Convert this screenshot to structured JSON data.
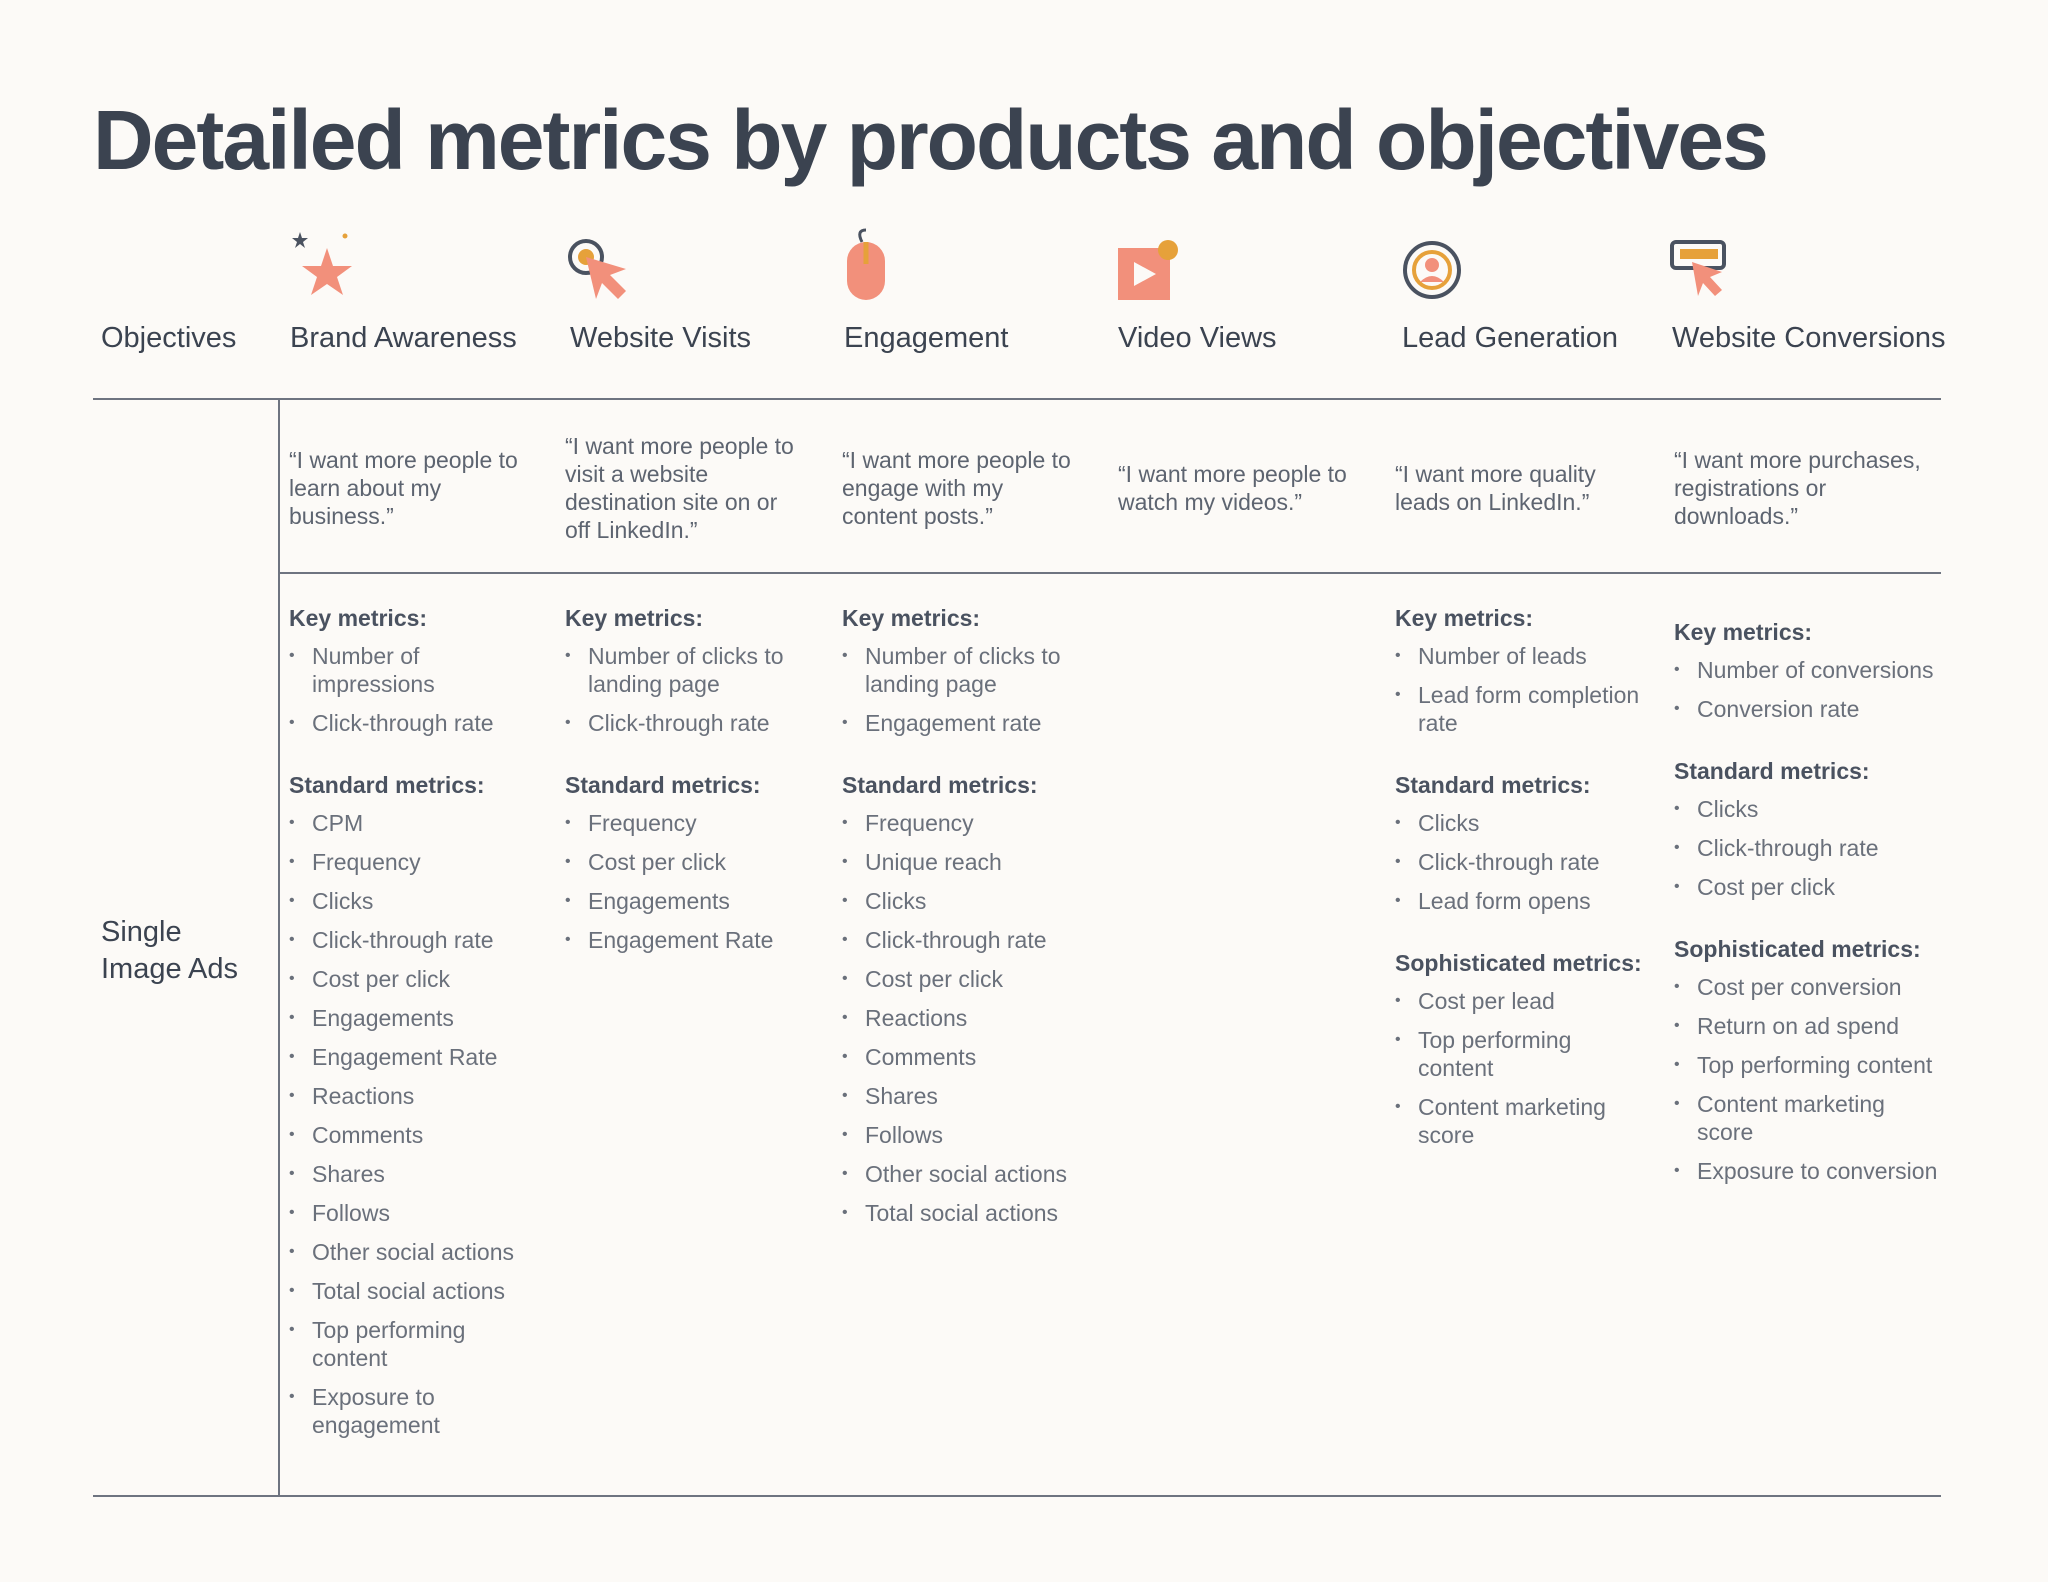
{
  "title": "Detailed metrics by products and objectives",
  "objectives_label": "Objectives",
  "product_label": "Single\nImage Ads",
  "colors": {
    "accent": "#f2907b",
    "accent_dark": "#e26e55",
    "gold": "#e6a13a",
    "text": "#3b4350",
    "rule": "#6e7480"
  },
  "columns": [
    {
      "icon": "star-sparkle-icon",
      "heading": "Brand Awareness",
      "quote": "“I want more people to learn about my business.”",
      "key_title": "Key metrics:",
      "key_metrics": [
        "Number of impressions",
        "Click-through rate"
      ],
      "standard_title": "Standard metrics:",
      "standard_metrics": [
        "CPM",
        "Frequency",
        "Clicks",
        "Click-through rate",
        "Cost per click",
        "Engagements",
        "Engagement Rate",
        "Reactions",
        "Comments",
        "Shares",
        "Follows",
        "Other social actions",
        "Total social actions",
        "Top performing content",
        "Exposure to engagement"
      ],
      "sophisticated_title": "",
      "sophisticated_metrics": []
    },
    {
      "icon": "cursor-click-icon",
      "heading": "Website Visits",
      "quote": "“I want more people to visit a website destination site on or off LinkedIn.”",
      "key_title": "Key metrics:",
      "key_metrics": [
        "Number of clicks to landing page",
        "Click-through rate"
      ],
      "standard_title": "Standard metrics:",
      "standard_metrics": [
        "Frequency",
        "Cost per click",
        "Engagements",
        "Engagement Rate"
      ],
      "sophisticated_title": "",
      "sophisticated_metrics": []
    },
    {
      "icon": "mouse-icon",
      "heading": "Engagement",
      "quote": "“I want more people to engage with my content posts.”",
      "key_title": "Key metrics:",
      "key_metrics": [
        "Number of clicks to landing page",
        "Engagement rate"
      ],
      "standard_title": "Standard metrics:",
      "standard_metrics": [
        "Frequency",
        "Unique reach",
        "Clicks",
        "Click-through rate",
        "Cost per click",
        "Reactions",
        "Comments",
        "Shares",
        "Follows",
        "Other social actions",
        "Total social actions"
      ],
      "sophisticated_title": "",
      "sophisticated_metrics": []
    },
    {
      "icon": "video-play-icon",
      "heading": "Video Views",
      "quote": "“I want more people to watch my videos.”",
      "key_title": "",
      "key_metrics": [],
      "standard_title": "",
      "standard_metrics": [],
      "sophisticated_title": "",
      "sophisticated_metrics": []
    },
    {
      "icon": "target-person-icon",
      "heading": "Lead Generation",
      "quote": "“I want more quality leads on LinkedIn.”",
      "key_title": "Key metrics:",
      "key_metrics": [
        "Number of leads",
        "Lead form completion rate"
      ],
      "standard_title": "Standard metrics:",
      "standard_metrics": [
        "Clicks",
        "Click-through rate",
        "Lead form opens"
      ],
      "sophisticated_title": "Sophisticated metrics:",
      "sophisticated_metrics": [
        "Cost per lead",
        "Top performing content",
        "Content marketing score"
      ]
    },
    {
      "icon": "screen-cursor-icon",
      "heading": "Website Conversions",
      "quote": "“I want more purchases, registrations or downloads.”",
      "key_title": "Key metrics:",
      "key_metrics": [
        "Number of conversions",
        "Conversion rate"
      ],
      "standard_title": "Standard metrics:",
      "standard_metrics": [
        "Clicks",
        "Click-through rate",
        "Cost per click"
      ],
      "sophisticated_title": "Sophisticated metrics:",
      "sophisticated_metrics": [
        "Cost per conversion",
        "Return on ad spend",
        "Top performing content",
        "Content marketing score",
        "Exposure to conversion"
      ]
    }
  ]
}
